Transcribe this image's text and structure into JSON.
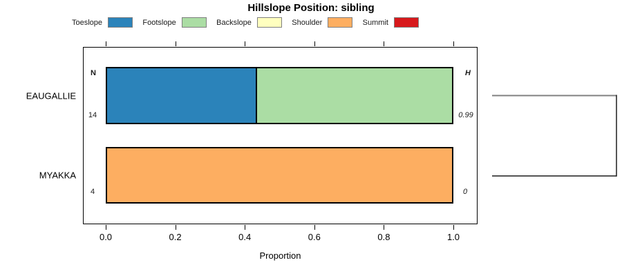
{
  "title": "Hillslope Position: sibling",
  "legend": {
    "items": [
      {
        "label": "Toeslope",
        "color": "#2B83BA"
      },
      {
        "label": "Footslope",
        "color": "#ABDDA4"
      },
      {
        "label": "Backslope",
        "color": "#FFFFBF"
      },
      {
        "label": "Shoulder",
        "color": "#FDAE61"
      },
      {
        "label": "Summit",
        "color": "#D7191C"
      }
    ]
  },
  "chart_data": {
    "type": "bar",
    "orientation": "horizontal",
    "stacked": true,
    "title": "Hillslope Position: sibling",
    "xlabel": "Proportion",
    "xlim": [
      0,
      1
    ],
    "x_ticks": [
      0,
      0.2,
      0.4,
      0.6,
      0.8,
      1
    ],
    "x_tick_labels": [
      "0.0",
      "0.2",
      "0.4",
      "0.6",
      "0.8",
      "1.0"
    ],
    "categories": [
      "EAUGALLIE",
      "MYAKKA"
    ],
    "series": [
      {
        "name": "Toeslope",
        "color": "#2B83BA",
        "values": [
          0.43,
          0
        ]
      },
      {
        "name": "Footslope",
        "color": "#ABDDA4",
        "values": [
          0.57,
          0
        ]
      },
      {
        "name": "Backslope",
        "color": "#FFFFBF",
        "values": [
          0,
          0
        ]
      },
      {
        "name": "Shoulder",
        "color": "#FDAE61",
        "values": [
          0,
          1
        ]
      },
      {
        "name": "Summit",
        "color": "#D7191C",
        "values": [
          0,
          0
        ]
      }
    ],
    "annotations": {
      "n_header": "N",
      "h_header": "H",
      "n_values": [
        "14",
        "4"
      ],
      "h_values": [
        "0.99",
        "0"
      ]
    },
    "legend_position": "top",
    "grid": false,
    "dendrogram": {
      "present": true,
      "top_edge_color": "#808080",
      "bottom_edge_color": "#1a1a1a"
    }
  }
}
